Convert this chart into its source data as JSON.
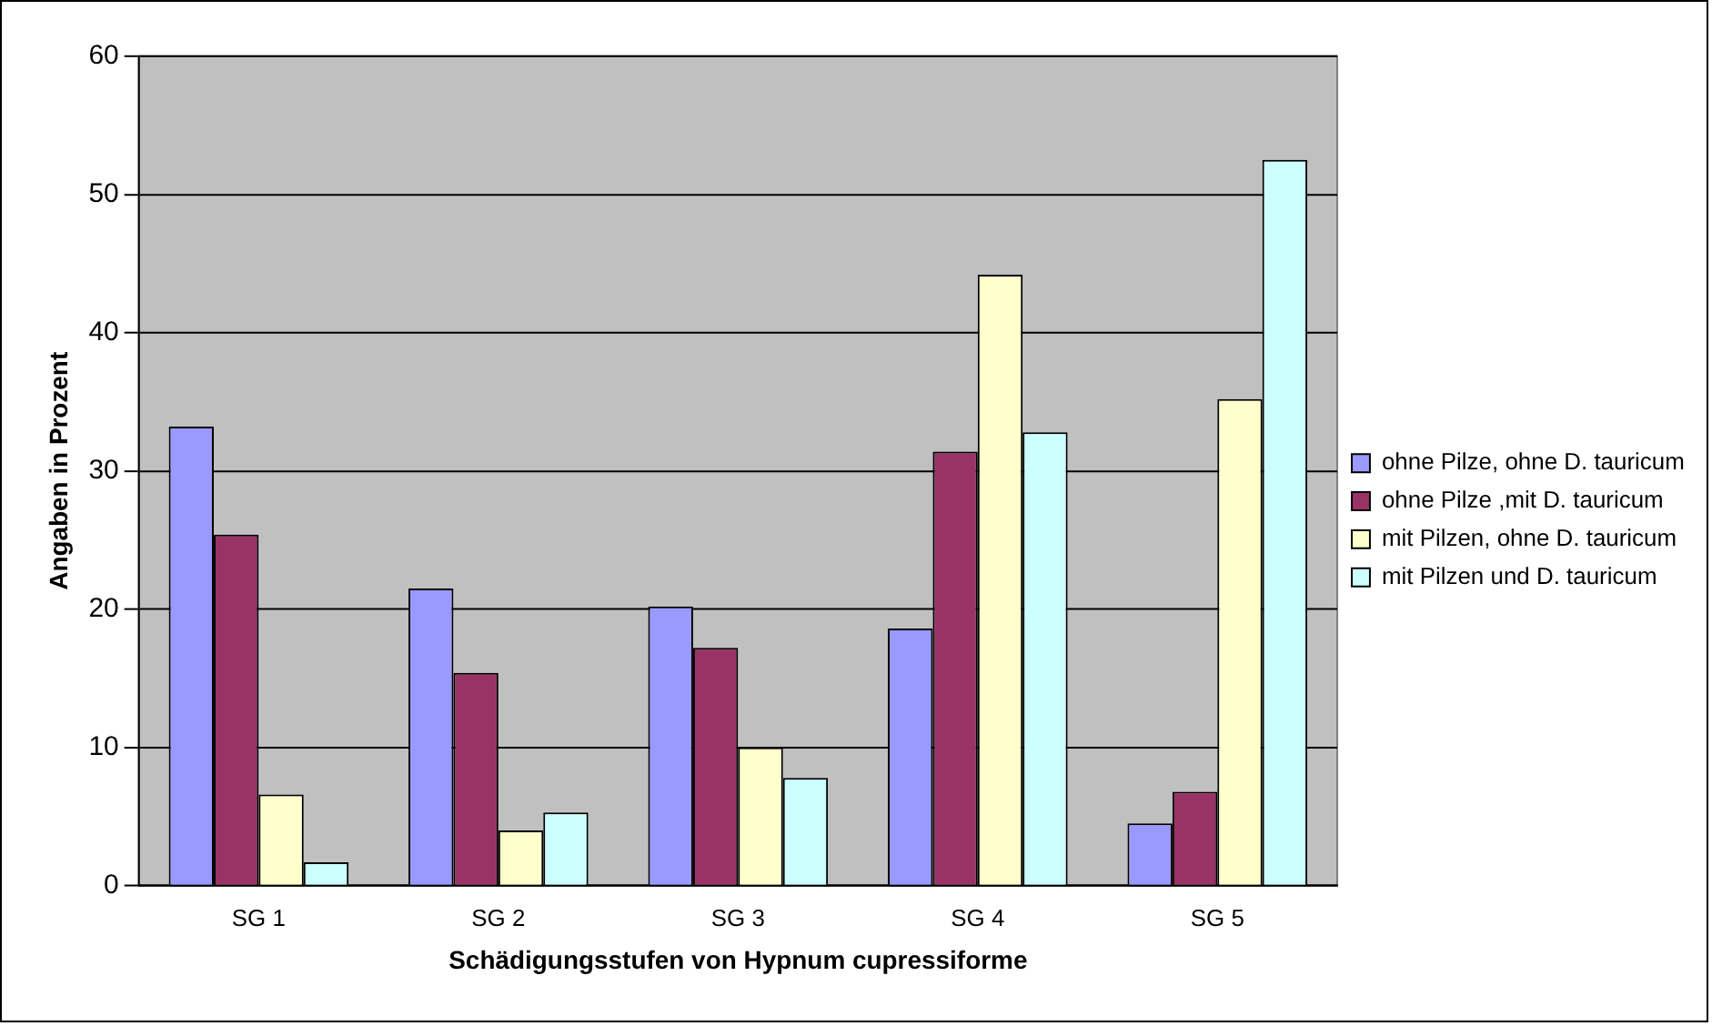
{
  "chart_data": {
    "type": "bar",
    "xlabel": "Schädigungsstufen von Hypnum cupressiforme",
    "ylabel": "Angaben in Prozent",
    "categories": [
      "SG 1",
      "SG 2",
      "SG 3",
      "SG 4",
      "SG 5"
    ],
    "series": [
      {
        "name": "ohne Pilze, ohne D. tauricum",
        "color": "#9999ff",
        "values": [
          33.2,
          21.5,
          20.2,
          18.6,
          4.5
        ]
      },
      {
        "name": "ohne Pilze ,mit D. tauricum",
        "color": "#993366",
        "values": [
          25.4,
          15.4,
          17.2,
          31.4,
          6.8
        ]
      },
      {
        "name": "mit Pilzen, ohne D. tauricum",
        "color": "#ffffcc",
        "values": [
          6.6,
          4.0,
          10.0,
          44.2,
          35.2
        ]
      },
      {
        "name": "mit Pilzen und D. tauricum",
        "color": "#ccffff",
        "values": [
          1.7,
          5.3,
          7.8,
          32.8,
          52.5
        ]
      }
    ],
    "ylim": [
      0,
      60
    ],
    "yticks": [
      0,
      10,
      20,
      30,
      40,
      50,
      60
    ],
    "grid": "y",
    "legend": "right"
  }
}
